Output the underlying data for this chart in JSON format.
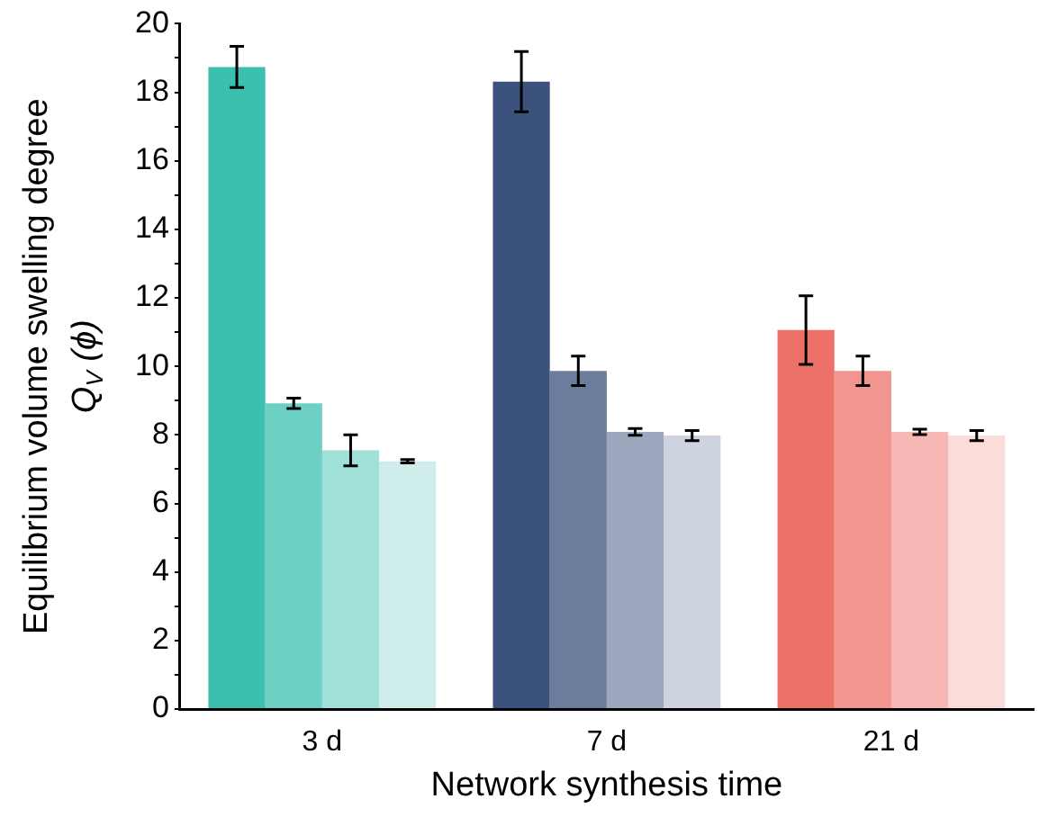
{
  "chart_data": {
    "type": "bar",
    "xlabel": "Network synthesis time",
    "ylabel": "Equilibrium volume swelling degree\nQ$_{V}$ (ϕ)",
    "categories": [
      "3 d",
      "7 d",
      "21 d"
    ],
    "series": [
      {
        "colors": [
          "#3bbfaf",
          "#3b527c",
          "#ee7169"
        ],
        "values": [
          18.74,
          18.31,
          11.06
        ],
        "errors": [
          0.6,
          0.88,
          1.0
        ]
      },
      {
        "colors": [
          "#6dd0c4",
          "#6c7c9c",
          "#f2958f"
        ],
        "values": [
          8.92,
          9.87,
          9.87
        ],
        "errors": [
          0.15,
          0.43,
          0.43
        ]
      },
      {
        "colors": [
          "#9fe0d8",
          "#9da8bf",
          "#f7b8b5"
        ],
        "values": [
          7.55,
          8.09,
          8.09
        ],
        "errors": [
          0.45,
          0.1,
          0.08
        ]
      },
      {
        "colors": [
          "#cfeeeb",
          "#ced4df",
          "#fadcdb"
        ],
        "values": [
          7.23,
          7.98,
          7.98
        ],
        "errors": [
          0.05,
          0.15,
          0.15
        ]
      }
    ],
    "ylim": [
      0,
      20
    ],
    "yticks": [
      0,
      {
        "value": 1,
        "label": null
      },
      2,
      {
        "value": 3,
        "label": null
      },
      4,
      {
        "value": 5,
        "label": null
      },
      6,
      {
        "value": 7,
        "label": null
      },
      8,
      {
        "value": 9,
        "label": null
      },
      10,
      {
        "value": 11,
        "label": null
      },
      12,
      {
        "value": 13,
        "label": null
      },
      14,
      {
        "value": 15,
        "label": null
      },
      16,
      {
        "value": 17,
        "label": null
      },
      18,
      {
        "value": 19,
        "label": null
      },
      20
    ],
    "grid": false,
    "legend": false
  }
}
